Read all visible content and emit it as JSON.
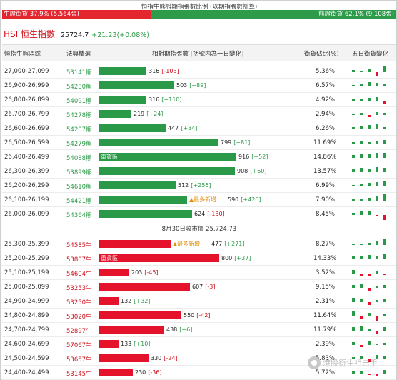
{
  "header": {
    "title": "恒指牛熊證期指張數比例 (以期指張數計算)",
    "bull_label": "牛證街貨 37.9% (5,564張)",
    "bear_label": "熊證街貨 62.1% (9,108張)",
    "bull_ratio": 0.379
  },
  "index": {
    "name": "HSI 恒生指數",
    "value": "25724.7",
    "change": "+21.23(+0.08%)"
  },
  "columns": {
    "range": "恒指牛熊區域",
    "code": "法興精選",
    "bar": "相對期指張數 [括號內為一日變化]",
    "pct": "街貨佔比(%)",
    "trend": "五日街貨變化"
  },
  "close_label": "8月30日收市價 25,724.73",
  "heavy_label": "重貨區",
  "new_tag": "▲最多新增",
  "rows": [
    {
      "range": "27,000-27,099",
      "code": "53141熊",
      "type": "bear",
      "value": "316",
      "chg": "[-103]",
      "pct": "5.36%",
      "n": 316
    },
    {
      "range": "26,900-26,999",
      "code": "54280熊",
      "type": "bear",
      "value": "503",
      "chg": "[+89]",
      "pct": "6.57%",
      "n": 503
    },
    {
      "range": "26,800-26,899",
      "code": "54091熊",
      "type": "bear",
      "value": "316",
      "chg": "[+110]",
      "pct": "4.92%",
      "n": 316
    },
    {
      "range": "26,700-26,799",
      "code": "54278熊",
      "type": "bear",
      "value": "219",
      "chg": "[+24]",
      "pct": "2.94%",
      "n": 219
    },
    {
      "range": "26,600-26,699",
      "code": "54207熊",
      "type": "bear",
      "value": "447",
      "chg": "[+84]",
      "pct": "6.26%",
      "n": 447
    },
    {
      "range": "26,500-26,599",
      "code": "54279熊",
      "type": "bear",
      "value": "799",
      "chg": "[+81]",
      "pct": "11.69%",
      "n": 799
    },
    {
      "range": "26,400-26,499",
      "code": "54088熊",
      "type": "bear",
      "value": "916",
      "chg": "[+52]",
      "pct": "14.86%",
      "n": 916,
      "heavy": true
    },
    {
      "range": "26,300-26,399",
      "code": "53899熊",
      "type": "bear",
      "value": "908",
      "chg": "[+60]",
      "pct": "13.57%",
      "n": 908
    },
    {
      "range": "26,200-26,299",
      "code": "54610熊",
      "type": "bear",
      "value": "512",
      "chg": "[+256]",
      "pct": "6.99%",
      "n": 512
    },
    {
      "range": "26,100-26,199",
      "code": "54421熊",
      "type": "bear",
      "value": "590",
      "chg": "[+426]",
      "pct": "7.90%",
      "n": 590,
      "newest": true
    },
    {
      "range": "26,000-26,099",
      "code": "54364熊",
      "type": "bear",
      "value": "624",
      "chg": "[-130]",
      "pct": "8.45%",
      "n": 624
    },
    {
      "range": "25,300-25,399",
      "code": "54585牛",
      "type": "bull",
      "value": "477",
      "chg": "[+271]",
      "pct": "8.27%",
      "n": 477,
      "newest": true
    },
    {
      "range": "25,200-25,299",
      "code": "53807牛",
      "type": "bull",
      "value": "800",
      "chg": "[+37]",
      "pct": "14.33%",
      "n": 800,
      "heavy": true
    },
    {
      "range": "25,100-25,199",
      "code": "54604牛",
      "type": "bull",
      "value": "203",
      "chg": "[-45]",
      "pct": "3.52%",
      "n": 203
    },
    {
      "range": "25,000-25,099",
      "code": "53253牛",
      "type": "bull",
      "value": "607",
      "chg": "[-3]",
      "pct": "9.15%",
      "n": 607
    },
    {
      "range": "24,900-24,999",
      "code": "53250牛",
      "type": "bull",
      "value": "132",
      "chg": "[+32]",
      "pct": "2.31%",
      "n": 132
    },
    {
      "range": "24,800-24,899",
      "code": "53020牛",
      "type": "bull",
      "value": "550",
      "chg": "[-42]",
      "pct": "11.64%",
      "n": 550
    },
    {
      "range": "24,700-24,799",
      "code": "52897牛",
      "type": "bull",
      "value": "438",
      "chg": "[+6]",
      "pct": "11.79%",
      "n": 438
    },
    {
      "range": "24,600-24,699",
      "code": "57067牛",
      "type": "bull",
      "value": "133",
      "chg": "[+10]",
      "pct": "2.39%",
      "n": 133
    },
    {
      "range": "24,500-24,599",
      "code": "53657牛",
      "type": "bull",
      "value": "330",
      "chg": "[-24]",
      "pct": "5.83%",
      "n": 330
    },
    {
      "range": "24,400-24,499",
      "code": "53145牛",
      "type": "bull",
      "value": "230",
      "chg": "[-36]",
      "pct": "5.72%",
      "n": 230
    }
  ],
  "watermark": "港股衍生祖击手",
  "colors": {
    "bull": "#e4122a",
    "bear": "#2b9a48",
    "index_name": "#d0121b",
    "tag": "#e08a00"
  }
}
